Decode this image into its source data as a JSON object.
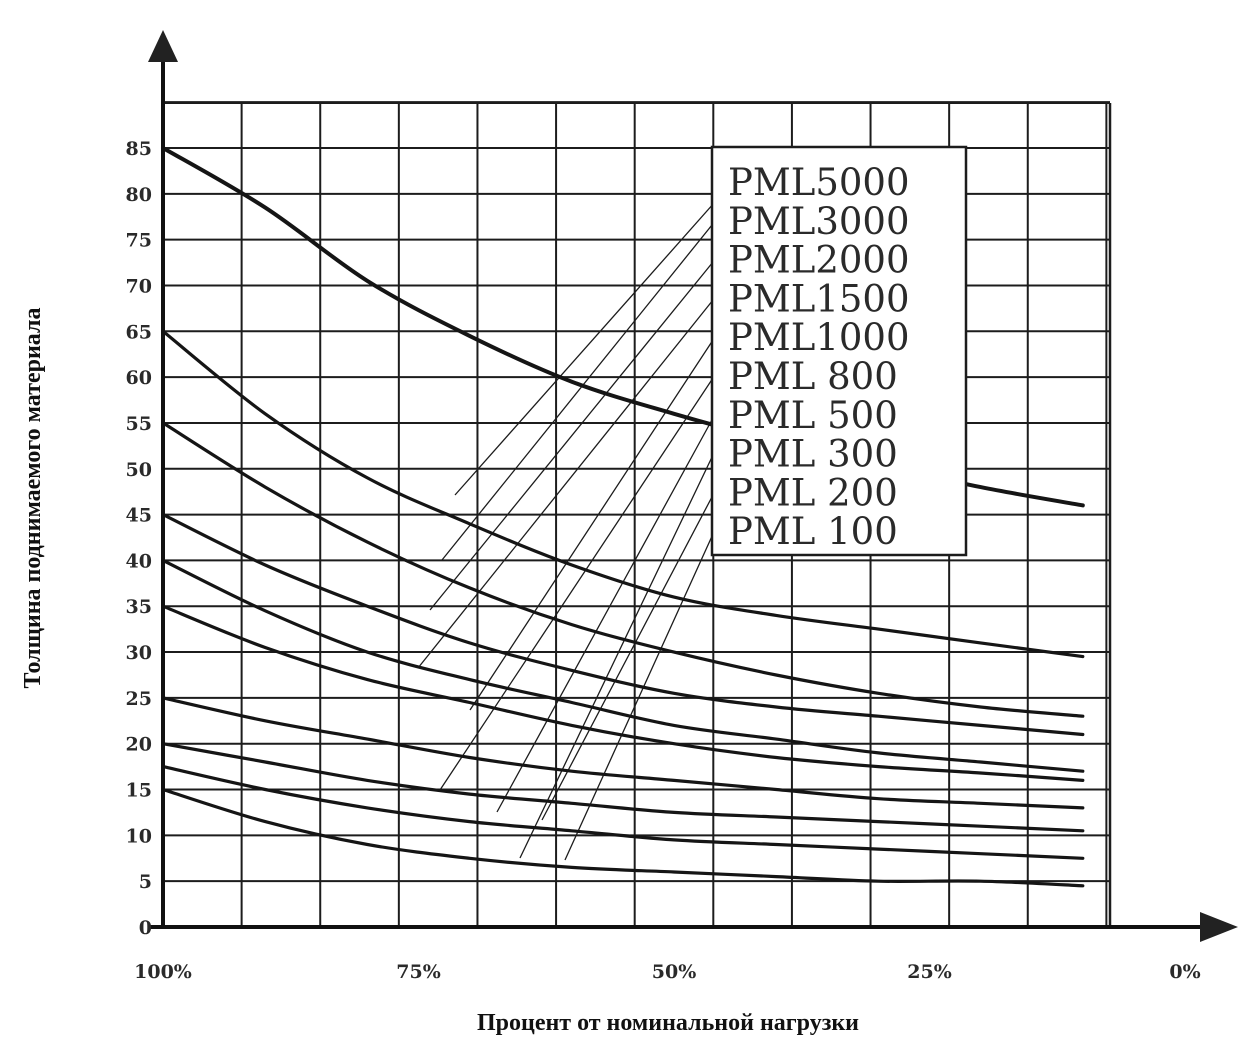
{
  "chart_data": {
    "type": "line",
    "xlabel": "Процент от номинальной нагрузки",
    "ylabel": "Толщина поднимаемого материала",
    "x_ticks": [
      "100%",
      "75%",
      "50%",
      "25%",
      "0%"
    ],
    "y_ticks": [
      "0",
      "5",
      "10",
      "15",
      "20",
      "25",
      "30",
      "35",
      "40",
      "45",
      "50",
      "55",
      "60",
      "65",
      "70",
      "75",
      "80",
      "85"
    ],
    "xlim": [
      100,
      0
    ],
    "ylim": [
      0,
      90
    ],
    "grid": true,
    "legend_position": "top-right",
    "x": [
      100,
      90,
      80,
      70,
      60,
      50,
      40,
      30,
      20,
      10
    ],
    "series": [
      {
        "name": "PML5000",
        "values": [
          85,
          78.5,
          70.5,
          64.5,
          59.5,
          56,
          53,
          50.5,
          48,
          46
        ]
      },
      {
        "name": "PML3000",
        "values": [
          65,
          56,
          49,
          44,
          39.5,
          36,
          34,
          32.5,
          31,
          29.5
        ]
      },
      {
        "name": "PML2000",
        "values": [
          55,
          48,
          42,
          37,
          33,
          30,
          27.5,
          25.5,
          24,
          23
        ]
      },
      {
        "name": "PML1500",
        "values": [
          45,
          39.5,
          35,
          31,
          28,
          25.5,
          24,
          23,
          22,
          21
        ]
      },
      {
        "name": "PML1000",
        "values": [
          40,
          34.5,
          30,
          27,
          24.5,
          22,
          20.5,
          19,
          18,
          17
        ]
      },
      {
        "name": "PML  800",
        "values": [
          35,
          30.5,
          27,
          24.5,
          22,
          20,
          18.5,
          17.5,
          16.8,
          16
        ]
      },
      {
        "name": "PML  500",
        "values": [
          25,
          22.5,
          20.5,
          18.5,
          17,
          16,
          15,
          14,
          13.5,
          13
        ]
      },
      {
        "name": "PML  300",
        "values": [
          20,
          18,
          16,
          14.5,
          13.5,
          12.5,
          12,
          11.5,
          11,
          10.5
        ]
      },
      {
        "name": "PML  200",
        "values": [
          17.5,
          15,
          13,
          11.5,
          10.5,
          9.5,
          9,
          8.5,
          8,
          7.5
        ]
      },
      {
        "name": "PML  100",
        "values": [
          15,
          11.5,
          9,
          7.5,
          6.5,
          6,
          5.5,
          5,
          5,
          4.5
        ]
      }
    ]
  }
}
